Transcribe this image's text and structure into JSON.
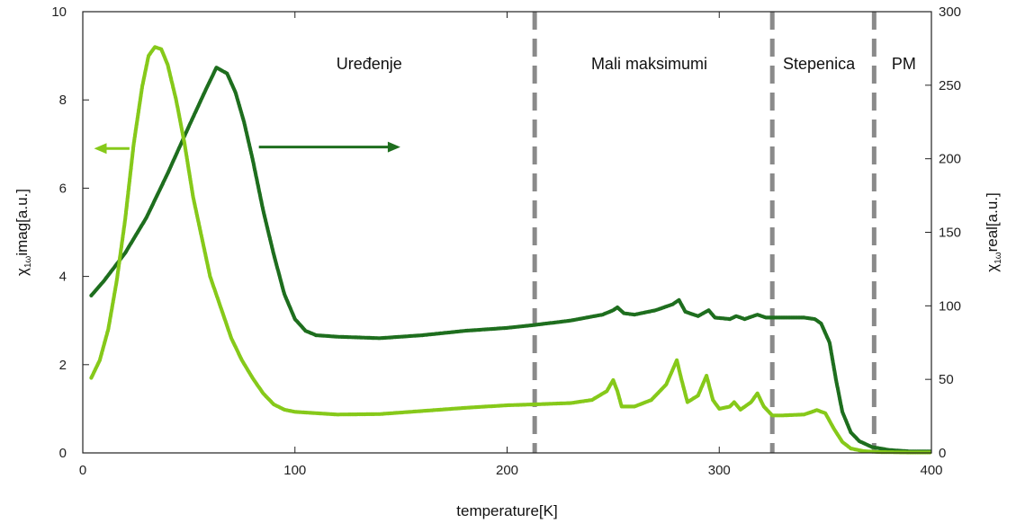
{
  "chart_data": {
    "type": "scatter",
    "title": "",
    "xlabel": "temperature[K]",
    "ylabel_left": {
      "main": "χ",
      "sub": "1ω",
      "rest": "imag[a.u.]"
    },
    "ylabel_right": {
      "main": "χ",
      "sub": "1ω",
      "rest": "real[a.u.]"
    },
    "xlim": [
      0,
      400
    ],
    "ylim_left": [
      0,
      10
    ],
    "ylim_right": [
      0,
      300
    ],
    "xticks": [
      0,
      100,
      200,
      300,
      400
    ],
    "yticks_left": [
      0,
      2,
      4,
      6,
      8,
      10
    ],
    "yticks_right": [
      0,
      50,
      100,
      150,
      200,
      250,
      300
    ],
    "grid": false,
    "legend": "none",
    "regions": [
      {
        "label": "Uređenje",
        "x": 135
      },
      {
        "label": "Mali maksimumi",
        "x": 267
      },
      {
        "label": "Stepenica",
        "x": 347
      },
      {
        "label": "PM",
        "x": 387
      }
    ],
    "dividers": [
      213,
      325,
      373
    ],
    "divider_color": "#8a8a8a",
    "arrows": [
      {
        "series": "imag",
        "direction": "left",
        "x_from": 22,
        "x_to": 7,
        "y": 6.9,
        "axis": "left"
      },
      {
        "series": "real",
        "direction": "right",
        "x_from": 83,
        "x_to": 148,
        "y": 208,
        "axis": "right"
      }
    ],
    "series": [
      {
        "key": "real",
        "axis": "right",
        "color": "#1e6e1e",
        "points": [
          [
            4,
            107
          ],
          [
            10,
            117
          ],
          [
            20,
            136
          ],
          [
            30,
            160
          ],
          [
            40,
            190
          ],
          [
            50,
            222
          ],
          [
            58,
            247
          ],
          [
            63,
            262
          ],
          [
            68,
            258
          ],
          [
            72,
            245
          ],
          [
            76,
            225
          ],
          [
            80,
            200
          ],
          [
            85,
            165
          ],
          [
            90,
            135
          ],
          [
            95,
            108
          ],
          [
            100,
            91
          ],
          [
            105,
            83
          ],
          [
            110,
            80
          ],
          [
            120,
            79
          ],
          [
            140,
            78
          ],
          [
            160,
            80
          ],
          [
            180,
            83
          ],
          [
            200,
            85
          ],
          [
            213,
            87
          ],
          [
            230,
            90
          ],
          [
            245,
            94
          ],
          [
            250,
            97
          ],
          [
            252,
            99
          ],
          [
            255,
            95
          ],
          [
            260,
            94
          ],
          [
            270,
            97
          ],
          [
            278,
            101
          ],
          [
            281,
            104
          ],
          [
            284,
            96
          ],
          [
            290,
            93
          ],
          [
            295,
            97
          ],
          [
            298,
            92
          ],
          [
            305,
            91
          ],
          [
            308,
            93
          ],
          [
            312,
            91
          ],
          [
            318,
            94
          ],
          [
            322,
            92
          ],
          [
            330,
            92
          ],
          [
            340,
            92
          ],
          [
            345,
            91
          ],
          [
            348,
            88
          ],
          [
            352,
            75
          ],
          [
            355,
            50
          ],
          [
            358,
            28
          ],
          [
            362,
            14
          ],
          [
            366,
            8
          ],
          [
            372,
            4
          ],
          [
            380,
            2
          ],
          [
            390,
            1
          ],
          [
            400,
            1
          ]
        ]
      },
      {
        "key": "imag",
        "axis": "left",
        "color": "#86c91a",
        "points": [
          [
            4,
            1.7
          ],
          [
            8,
            2.1
          ],
          [
            12,
            2.8
          ],
          [
            16,
            3.9
          ],
          [
            20,
            5.3
          ],
          [
            24,
            7.0
          ],
          [
            28,
            8.3
          ],
          [
            31,
            9.0
          ],
          [
            34,
            9.2
          ],
          [
            37,
            9.15
          ],
          [
            40,
            8.8
          ],
          [
            44,
            8.0
          ],
          [
            48,
            7.0
          ],
          [
            52,
            5.8
          ],
          [
            56,
            4.9
          ],
          [
            60,
            4.0
          ],
          [
            65,
            3.3
          ],
          [
            70,
            2.6
          ],
          [
            75,
            2.1
          ],
          [
            80,
            1.7
          ],
          [
            85,
            1.35
          ],
          [
            90,
            1.1
          ],
          [
            95,
            0.98
          ],
          [
            100,
            0.93
          ],
          [
            110,
            0.9
          ],
          [
            120,
            0.87
          ],
          [
            140,
            0.88
          ],
          [
            160,
            0.95
          ],
          [
            180,
            1.02
          ],
          [
            200,
            1.08
          ],
          [
            213,
            1.1
          ],
          [
            230,
            1.13
          ],
          [
            240,
            1.2
          ],
          [
            247,
            1.4
          ],
          [
            250,
            1.65
          ],
          [
            252,
            1.4
          ],
          [
            254,
            1.05
          ],
          [
            260,
            1.05
          ],
          [
            268,
            1.2
          ],
          [
            275,
            1.55
          ],
          [
            280,
            2.1
          ],
          [
            282,
            1.7
          ],
          [
            285,
            1.15
          ],
          [
            290,
            1.3
          ],
          [
            294,
            1.75
          ],
          [
            297,
            1.2
          ],
          [
            300,
            1.0
          ],
          [
            305,
            1.05
          ],
          [
            307,
            1.15
          ],
          [
            310,
            0.98
          ],
          [
            315,
            1.15
          ],
          [
            318,
            1.35
          ],
          [
            321,
            1.05
          ],
          [
            325,
            0.85
          ],
          [
            330,
            0.85
          ],
          [
            340,
            0.87
          ],
          [
            346,
            0.97
          ],
          [
            350,
            0.9
          ],
          [
            354,
            0.55
          ],
          [
            358,
            0.25
          ],
          [
            362,
            0.1
          ],
          [
            368,
            0.04
          ],
          [
            375,
            0.02
          ],
          [
            390,
            0.01
          ],
          [
            400,
            0.01
          ]
        ]
      }
    ]
  }
}
